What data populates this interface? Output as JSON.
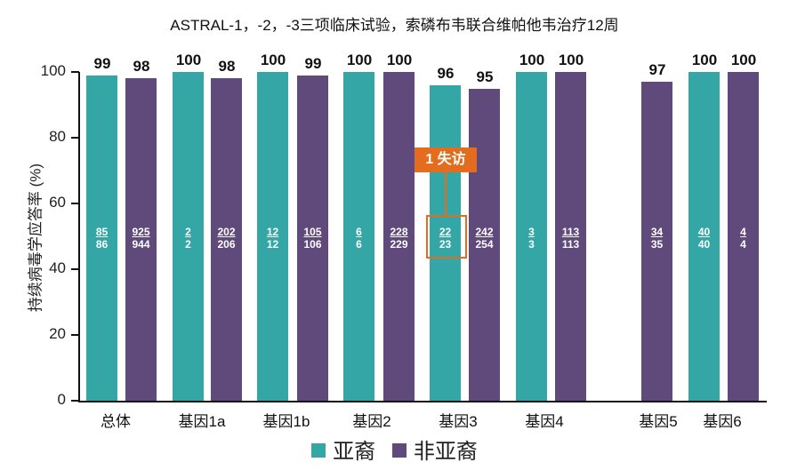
{
  "chart_data": {
    "type": "bar",
    "title": "ASTRAL-1，-2，-3三项临床试验，索磷布韦联合维帕他韦治疗12周",
    "xlabel": "",
    "ylabel": "持续病毒学应答率 (%)",
    "ylim": [
      0,
      100
    ],
    "yticks": [
      "0",
      "20",
      "40",
      "60",
      "80",
      "100"
    ],
    "grid": false,
    "legend_position": "bottom",
    "categories": [
      "总体",
      "基因1a",
      "基因1b",
      "基因2",
      "基因3",
      "基因4",
      "基因5",
      "基因6"
    ],
    "series": [
      {
        "name": "亚裔",
        "color": "#35a6a6",
        "values": [
          99,
          100,
          100,
          100,
          96,
          100,
          null,
          100
        ],
        "labels": [
          "99",
          "100",
          "100",
          "100",
          "96",
          "100",
          "",
          "100"
        ],
        "fractions": [
          {
            "num": "85",
            "den": "86"
          },
          {
            "num": "2",
            "den": "2"
          },
          {
            "num": "12",
            "den": "12"
          },
          {
            "num": "6",
            "den": "6"
          },
          {
            "num": "22",
            "den": "23"
          },
          {
            "num": "3",
            "den": "3"
          },
          null,
          {
            "num": "40",
            "den": "40"
          }
        ]
      },
      {
        "name": "非亚裔",
        "color": "#604a7b",
        "values": [
          98,
          98,
          99,
          100,
          95,
          100,
          97,
          100
        ],
        "labels": [
          "98",
          "98",
          "99",
          "100",
          "95",
          "100",
          "97",
          "100"
        ],
        "fractions": [
          {
            "num": "925",
            "den": "944"
          },
          {
            "num": "202",
            "den": "206"
          },
          {
            "num": "105",
            "den": "106"
          },
          {
            "num": "228",
            "den": "229"
          },
          {
            "num": "242",
            "den": "254"
          },
          {
            "num": "113",
            "den": "113"
          },
          {
            "num": "34",
            "den": "35"
          },
          {
            "num": "4",
            "den": "4"
          }
        ]
      }
    ],
    "annotations": [
      {
        "text": "1 失访",
        "target": "基因3 亚裔 22/23",
        "color": "#e46c1e"
      }
    ]
  },
  "legend": {
    "items": [
      {
        "label": "亚裔",
        "color": "#35a6a6"
      },
      {
        "label": "非亚裔",
        "color": "#604a7b"
      }
    ]
  },
  "annotation": {
    "label": "1 失访"
  }
}
